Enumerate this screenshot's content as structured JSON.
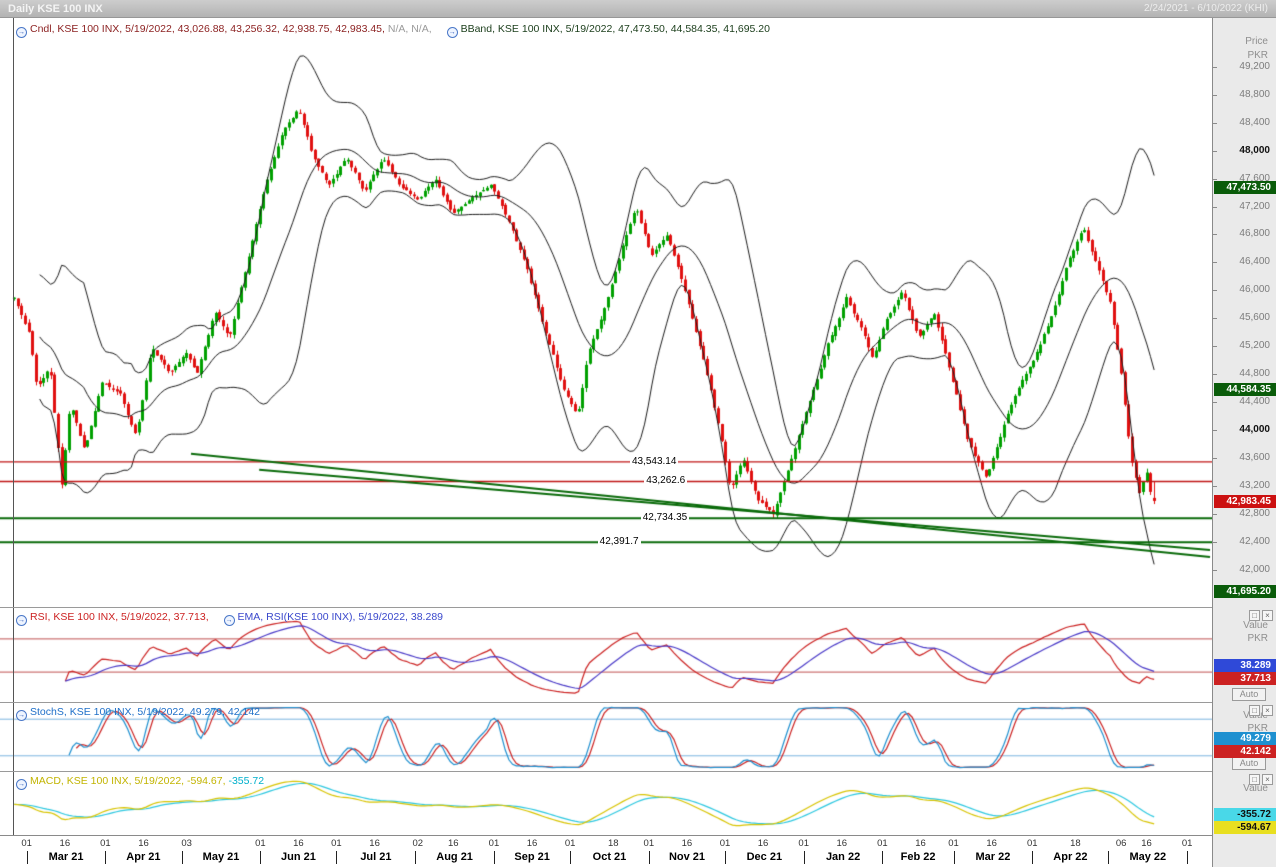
{
  "chart_data": {
    "type": "candlestick",
    "title": "Daily KSE 100 INX",
    "instrument": "KSE 100 INX",
    "as_of_date": "5/19/2022",
    "date_range": "2/24/2021 - 6/10/2022 (KHI)",
    "icons": {
      "maximize": "□",
      "close": "×"
    },
    "axis_labels": {
      "price": "Price",
      "pkr": "PKR",
      "value": "Value",
      "auto": "Auto"
    },
    "main": {
      "ylim": [
        41450,
        49900
      ],
      "num_candles": 312,
      "data_end_fraction": 0.9533,
      "legend_groups": [
        {
          "segments": [
            {
              "text": "Cndl, KSE 100 INX, 5/19/2022, 43,026.88, 43,256.32, 42,938.75, 42,983.45, ",
              "color": "#8b1f1f"
            },
            {
              "text": "N/A, N/A, ",
              "color": "#9a9a9a"
            }
          ]
        },
        {
          "segments": [
            {
              "text": "BBand, KSE 100 INX, 5/19/2022, 47,473.50, 44,584.35, 41,695.20",
              "color": "#1a3d1a"
            }
          ]
        }
      ],
      "last_candle": {
        "open": 43026.88,
        "high": 43256.32,
        "low": 42938.75,
        "close": 42983.45
      },
      "bband_last": {
        "upper": 47473.5,
        "middle": 44584.35,
        "lower": 41695.2
      },
      "yticks": [
        {
          "label": "49,200",
          "value": 49200
        },
        {
          "label": "48,800",
          "value": 48800
        },
        {
          "label": "48,400",
          "value": 48400
        },
        {
          "label": "48,000",
          "value": 48000,
          "bold": true
        },
        {
          "label": "47,600",
          "value": 47600
        },
        {
          "label": "47,200",
          "value": 47200
        },
        {
          "label": "46,800",
          "value": 46800
        },
        {
          "label": "46,400",
          "value": 46400
        },
        {
          "label": "46,000",
          "value": 46000
        },
        {
          "label": "45,600",
          "value": 45600
        },
        {
          "label": "45,200",
          "value": 45200
        },
        {
          "label": "44,800",
          "value": 44800
        },
        {
          "label": "44,400",
          "value": 44400
        },
        {
          "label": "44,000",
          "value": 44000,
          "bold": true
        },
        {
          "label": "43,600",
          "value": 43600
        },
        {
          "label": "43,200",
          "value": 43200
        },
        {
          "label": "42,800",
          "value": 42800
        },
        {
          "label": "42,400",
          "value": 42400
        },
        {
          "label": "42,000",
          "value": 42000
        }
      ],
      "axis_badges": [
        {
          "label": "47,473.50",
          "value": 47473.5,
          "bg": "#0a5c0a",
          "fg": "#ffffff"
        },
        {
          "label": "44,584.35",
          "value": 44584.35,
          "bg": "#0a5c0a",
          "fg": "#ffffff"
        },
        {
          "label": "42,983.45",
          "value": 42983.45,
          "bg": "#cc1111",
          "fg": "#ffffff"
        },
        {
          "label": "41,695.20",
          "value": 41695.2,
          "bg": "#0a5c0a",
          "fg": "#ffffff"
        }
      ],
      "hlines": [
        {
          "value": 43543.14,
          "color": "#c01414",
          "width": 1.4,
          "label": "43,543.14",
          "label_f": 0.515
        },
        {
          "value": 43262.6,
          "color": "#c01414",
          "width": 1.4,
          "label": "43,262.6",
          "label_f": 0.527
        },
        {
          "value": 42734.35,
          "color": "#0a6b0a",
          "width": 2,
          "label": "42,734.35",
          "label_f": 0.524
        },
        {
          "value": 42391.7,
          "color": "#0a6b0a",
          "width": 2,
          "label": "42,391.7",
          "label_f": 0.488
        }
      ],
      "trendlines": [
        {
          "f1": 0.148,
          "v1": 43660,
          "f2": 1.0,
          "v2": 42180,
          "color": "#0a6b0a",
          "width": 2
        },
        {
          "f1": 0.205,
          "v1": 43430,
          "f2": 1.0,
          "v2": 42280,
          "color": "#0a6b0a",
          "width": 2
        }
      ],
      "colors": {
        "up": "#00a000",
        "down": "#e01010",
        "band": "#1c1c1c"
      },
      "close_anchors": [
        [
          0,
          45900
        ],
        [
          0.013,
          45400
        ],
        [
          0.019,
          44600
        ],
        [
          0.03,
          44900
        ],
        [
          0.04,
          43200
        ],
        [
          0.047,
          44400
        ],
        [
          0.059,
          43700
        ],
        [
          0.074,
          44700
        ],
        [
          0.089,
          44500
        ],
        [
          0.102,
          43900
        ],
        [
          0.115,
          45200
        ],
        [
          0.13,
          44800
        ],
        [
          0.144,
          45100
        ],
        [
          0.153,
          44800
        ],
        [
          0.168,
          45700
        ],
        [
          0.18,
          45300
        ],
        [
          0.195,
          46400
        ],
        [
          0.21,
          47500
        ],
        [
          0.225,
          48300
        ],
        [
          0.238,
          48600
        ],
        [
          0.25,
          47900
        ],
        [
          0.263,
          47500
        ],
        [
          0.278,
          47900
        ],
        [
          0.293,
          47400
        ],
        [
          0.308,
          47900
        ],
        [
          0.323,
          47500
        ],
        [
          0.338,
          47300
        ],
        [
          0.352,
          47600
        ],
        [
          0.367,
          47100
        ],
        [
          0.382,
          47300
        ],
        [
          0.399,
          47500
        ],
        [
          0.414,
          47000
        ],
        [
          0.429,
          46300
        ],
        [
          0.444,
          45400
        ],
        [
          0.459,
          44600
        ],
        [
          0.471,
          44200
        ],
        [
          0.48,
          45100
        ],
        [
          0.495,
          45800
        ],
        [
          0.51,
          46700
        ],
        [
          0.52,
          47200
        ],
        [
          0.533,
          46500
        ],
        [
          0.546,
          46800
        ],
        [
          0.561,
          46000
        ],
        [
          0.575,
          45100
        ],
        [
          0.59,
          44000
        ],
        [
          0.599,
          43100
        ],
        [
          0.609,
          43600
        ],
        [
          0.622,
          43000
        ],
        [
          0.635,
          42800
        ],
        [
          0.65,
          43600
        ],
        [
          0.667,
          44500
        ],
        [
          0.682,
          45300
        ],
        [
          0.696,
          45900
        ],
        [
          0.709,
          45400
        ],
        [
          0.718,
          45000
        ],
        [
          0.73,
          45600
        ],
        [
          0.743,
          46000
        ],
        [
          0.756,
          45300
        ],
        [
          0.769,
          45700
        ],
        [
          0.783,
          44800
        ],
        [
          0.798,
          43800
        ],
        [
          0.813,
          43300
        ],
        [
          0.828,
          44100
        ],
        [
          0.843,
          44700
        ],
        [
          0.858,
          45200
        ],
        [
          0.873,
          45900
        ],
        [
          0.881,
          46400
        ],
        [
          0.894,
          46900
        ],
        [
          0.907,
          46300
        ],
        [
          0.917,
          45800
        ],
        [
          0.926,
          44800
        ],
        [
          0.934,
          43600
        ],
        [
          0.941,
          43100
        ],
        [
          0.947,
          43400
        ],
        [
          0.951,
          43050
        ],
        [
          0.9533,
          42983.45
        ]
      ]
    },
    "rsi": {
      "legend_groups": [
        {
          "segments": [
            {
              "text": "RSI, KSE 100 INX, 5/19/2022, 37.713, ",
              "color": "#cc2222"
            }
          ]
        },
        {
          "segments": [
            {
              "text": "EMA, RSI(KSE 100 INX), 5/19/2022, 38.289",
              "color": "#3a48cc"
            }
          ]
        }
      ],
      "values": {
        "rsi": 37.713,
        "ema": 38.289
      },
      "period": 14,
      "ema_period": 14,
      "bands": [
        70,
        30
      ],
      "band_color": "#c05050",
      "colors": {
        "rsi": "#cc2222",
        "ema": "#4a3ac8"
      },
      "axis_badges": [
        {
          "label": "38.289",
          "value": 38.289,
          "bg": "#2f49d8",
          "fg": "#ffffff"
        },
        {
          "label": "37.713",
          "value": 37.713,
          "bg": "#cc2222",
          "fg": "#ffffff"
        }
      ]
    },
    "stoch": {
      "legend_groups": [
        {
          "segments": [
            {
              "text": "StochS, KSE 100 INX, 5/19/2022, 49.279, 42.142",
              "color": "#1e6fc8"
            }
          ]
        }
      ],
      "values": {
        "k": 49.279,
        "d": 42.142
      },
      "bands": [
        80,
        20
      ],
      "band_color": "#7ab4e0",
      "colors": {
        "k": "#1e90d0",
        "d": "#cc2222"
      },
      "axis_badges": [
        {
          "label": "49.279",
          "value": 49.279,
          "bg": "#1e90d0",
          "fg": "#ffffff"
        },
        {
          "label": "42.142",
          "value": 42.142,
          "bg": "#cc2222",
          "fg": "#ffffff"
        }
      ]
    },
    "macd": {
      "legend_groups": [
        {
          "segments": [
            {
              "text": "MACD, KSE 100 INX, 5/19/2022, -594.67, ",
              "color": "#c2b400"
            },
            {
              "text": "-355.72",
              "color": "#00b0cc"
            }
          ]
        }
      ],
      "values": {
        "macd": -594.67,
        "signal": -355.72
      },
      "colors": {
        "macd": "#d8c400",
        "signal": "#2cc8e0"
      },
      "axis_badges": [
        {
          "label": "-355.72",
          "value": -355.72,
          "bg": "#49d8e8",
          "fg": "#111111"
        },
        {
          "label": "-594.67",
          "value": -594.67,
          "bg": "#e8df20",
          "fg": "#111111"
        }
      ]
    },
    "xaxis": {
      "day_ticks": [
        {
          "label": "01",
          "f": 0.0106
        },
        {
          "label": "16",
          "f": 0.0425
        },
        {
          "label": "01",
          "f": 0.0764
        },
        {
          "label": "16",
          "f": 0.1083
        },
        {
          "label": "03",
          "f": 0.1444
        },
        {
          "label": "01",
          "f": 0.206
        },
        {
          "label": "16",
          "f": 0.2378
        },
        {
          "label": "01",
          "f": 0.2696
        },
        {
          "label": "16",
          "f": 0.3015
        },
        {
          "label": "02",
          "f": 0.3376
        },
        {
          "label": "16",
          "f": 0.3673
        },
        {
          "label": "01",
          "f": 0.4013
        },
        {
          "label": "16",
          "f": 0.4331
        },
        {
          "label": "01",
          "f": 0.465
        },
        {
          "label": "18",
          "f": 0.5011
        },
        {
          "label": "01",
          "f": 0.5308
        },
        {
          "label": "16",
          "f": 0.5626
        },
        {
          "label": "01",
          "f": 0.5945
        },
        {
          "label": "16",
          "f": 0.6263
        },
        {
          "label": "01",
          "f": 0.6603
        },
        {
          "label": "16",
          "f": 0.6921
        },
        {
          "label": "01",
          "f": 0.7261
        },
        {
          "label": "16",
          "f": 0.758
        },
        {
          "label": "01",
          "f": 0.7856
        },
        {
          "label": "16",
          "f": 0.8174
        },
        {
          "label": "01",
          "f": 0.8514
        },
        {
          "label": "18",
          "f": 0.8875
        },
        {
          "label": "06",
          "f": 0.9257
        },
        {
          "label": "16",
          "f": 0.9469
        },
        {
          "label": "01",
          "f": 0.9809
        }
      ],
      "months": [
        {
          "label": "Mar 21",
          "f": 0.0435
        },
        {
          "label": "Apr 21",
          "f": 0.1082
        },
        {
          "label": "May 21",
          "f": 0.1731
        },
        {
          "label": "Jun 21",
          "f": 0.2378
        },
        {
          "label": "Jul 21",
          "f": 0.3026
        },
        {
          "label": "Aug 21",
          "f": 0.3684
        },
        {
          "label": "Sep 21",
          "f": 0.4332
        },
        {
          "label": "Oct 21",
          "f": 0.4979
        },
        {
          "label": "Nov 21",
          "f": 0.5627
        },
        {
          "label": "Dec 21",
          "f": 0.6274
        },
        {
          "label": "Jan 22",
          "f": 0.6932
        },
        {
          "label": "Feb 22",
          "f": 0.7559
        },
        {
          "label": "Mar 22",
          "f": 0.8185
        },
        {
          "label": "Apr 22",
          "f": 0.8833
        },
        {
          "label": "May 22",
          "f": 0.948
        }
      ],
      "boundaries": [
        0.0106,
        0.0764,
        0.1401,
        0.206,
        0.2696,
        0.3355,
        0.4013,
        0.465,
        0.5308,
        0.5945,
        0.6603,
        0.7261,
        0.7856,
        0.8514,
        0.9151,
        0.9809
      ]
    }
  }
}
